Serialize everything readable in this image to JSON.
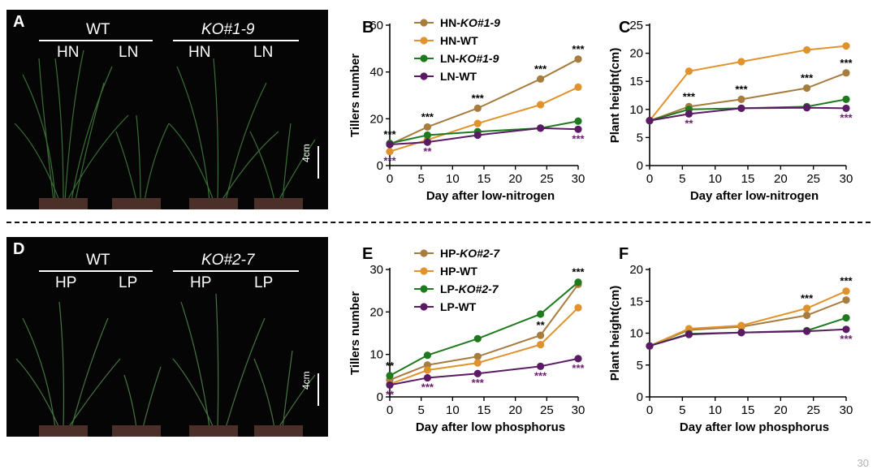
{
  "page_number": "30",
  "colors": {
    "ko": "#a67c3f",
    "wt": "#e0922c",
    "low_ko": "#1f7a1f",
    "low_wt": "#5b1a64",
    "sig_black": "#000000",
    "sig_purple": "#6b1f6f"
  },
  "panels_photo": [
    {
      "label": "A",
      "group_left": "WT",
      "group_right": "KO#1-9",
      "sub": [
        "HN",
        "LN",
        "HN",
        "LN"
      ],
      "scale": "4cm"
    },
    {
      "label": "D",
      "group_left": "WT",
      "group_right": "KO#2-7",
      "sub": [
        "HP",
        "LP",
        "HP",
        "LP"
      ],
      "scale": "4cm"
    }
  ],
  "chart_data": [
    {
      "panel": "B",
      "type": "line",
      "xlabel": "Day after low-nitrogen",
      "ylabel": "Tillers number",
      "x": [
        0,
        6,
        14,
        24,
        30
      ],
      "xticks": [
        "0",
        "5",
        "10",
        "15",
        "20",
        "25",
        "30"
      ],
      "xtick_values": [
        0,
        5,
        10,
        15,
        20,
        25,
        30
      ],
      "ylim": [
        0,
        60
      ],
      "yticks": [
        "0",
        "20",
        "40",
        "60"
      ],
      "ytick_values": [
        0,
        20,
        40,
        60
      ],
      "legend": [
        {
          "prefix": "HN-",
          "italic": "KO#1-9"
        },
        {
          "prefix": "HN-WT",
          "italic": ""
        },
        {
          "prefix": "LN-",
          "italic": "KO#1-9"
        },
        {
          "prefix": "LN-WT",
          "italic": ""
        }
      ],
      "series": [
        {
          "name": "HN-KO#1-9",
          "values": [
            9,
            16.5,
            24.5,
            37,
            45.5
          ]
        },
        {
          "name": "HN-WT",
          "values": [
            6,
            11,
            18,
            26,
            33.5
          ]
        },
        {
          "name": "LN-KO#1-9",
          "values": [
            9.5,
            13,
            14.5,
            16,
            19
          ]
        },
        {
          "name": "LN-WT",
          "values": [
            9,
            10,
            13,
            16,
            15.5
          ]
        }
      ],
      "annotations": [
        {
          "x": 0,
          "y": 9,
          "text": "***",
          "color": "black",
          "pos": "above"
        },
        {
          "x": 0,
          "y": 6,
          "text": "***",
          "color": "purple",
          "pos": "below"
        },
        {
          "x": 6,
          "y": 16.5,
          "text": "***",
          "color": "black",
          "pos": "above"
        },
        {
          "x": 6,
          "y": 10,
          "text": "**",
          "color": "purple",
          "pos": "below"
        },
        {
          "x": 14,
          "y": 24.5,
          "text": "***",
          "color": "black",
          "pos": "above"
        },
        {
          "x": 24,
          "y": 37,
          "text": "***",
          "color": "black",
          "pos": "above"
        },
        {
          "x": 30,
          "y": 45.5,
          "text": "***",
          "color": "black",
          "pos": "above"
        },
        {
          "x": 30,
          "y": 15.5,
          "text": "***",
          "color": "purple",
          "pos": "below"
        }
      ]
    },
    {
      "panel": "C",
      "type": "line",
      "xlabel": "Day after low-nitrogen",
      "ylabel": "Plant height(cm)",
      "x": [
        0,
        6,
        14,
        24,
        30
      ],
      "xticks": [
        "0",
        "5",
        "10",
        "15",
        "20",
        "25",
        "30"
      ],
      "xtick_values": [
        0,
        5,
        10,
        15,
        20,
        25,
        30
      ],
      "ylim": [
        0,
        25
      ],
      "yticks": [
        "0",
        "5",
        "10",
        "15",
        "20",
        "25"
      ],
      "ytick_values": [
        0,
        5,
        10,
        15,
        20,
        25
      ],
      "legend": [],
      "series": [
        {
          "name": "HN-KO#1-9",
          "values": [
            8,
            10.5,
            11.8,
            13.8,
            16.5
          ]
        },
        {
          "name": "HN-WT",
          "values": [
            8,
            16.8,
            18.5,
            20.6,
            21.3
          ]
        },
        {
          "name": "LN-KO#1-9",
          "values": [
            8,
            10,
            10.2,
            10.5,
            11.8
          ]
        },
        {
          "name": "LN-WT",
          "values": [
            8,
            9.2,
            10.2,
            10.3,
            10.2
          ]
        }
      ],
      "annotations": [
        {
          "x": 6,
          "y": 10.5,
          "text": "***",
          "color": "black",
          "pos": "above"
        },
        {
          "x": 6,
          "y": 9.2,
          "text": "**",
          "color": "purple",
          "pos": "below"
        },
        {
          "x": 14,
          "y": 11.8,
          "text": "***",
          "color": "black",
          "pos": "above"
        },
        {
          "x": 24,
          "y": 13.8,
          "text": "***",
          "color": "black",
          "pos": "above"
        },
        {
          "x": 30,
          "y": 16.5,
          "text": "***",
          "color": "black",
          "pos": "above"
        },
        {
          "x": 30,
          "y": 10.2,
          "text": "***",
          "color": "purple",
          "pos": "below"
        }
      ]
    },
    {
      "panel": "E",
      "type": "line",
      "xlabel": "Day after low phosphorus",
      "ylabel": "Tillers number",
      "x": [
        0,
        6,
        14,
        24,
        30
      ],
      "xticks": [
        "0",
        "5",
        "10",
        "15",
        "20",
        "25",
        "30"
      ],
      "xtick_values": [
        0,
        5,
        10,
        15,
        20,
        25,
        30
      ],
      "ylim": [
        0,
        30
      ],
      "yticks": [
        "0",
        "10",
        "20",
        "30"
      ],
      "ytick_values": [
        0,
        10,
        20,
        30
      ],
      "legend": [
        {
          "prefix": "HP-",
          "italic": "KO#2-7"
        },
        {
          "prefix": "HP-WT",
          "italic": ""
        },
        {
          "prefix": "LP-",
          "italic": "KO#2-7"
        },
        {
          "prefix": "LP-WT",
          "italic": ""
        }
      ],
      "series": [
        {
          "name": "HP-KO#2-7",
          "values": [
            4,
            7.5,
            9.5,
            14.5,
            26.5
          ]
        },
        {
          "name": "HP-WT",
          "values": [
            3,
            6.3,
            8,
            12.3,
            21
          ]
        },
        {
          "name": "LP-KO#2-7",
          "values": [
            5,
            9.8,
            13.7,
            19.5,
            27
          ]
        },
        {
          "name": "LP-WT",
          "values": [
            2.8,
            4.5,
            5.5,
            7.2,
            9
          ]
        }
      ],
      "annotations": [
        {
          "x": 0,
          "y": 5,
          "text": "**",
          "color": "black",
          "pos": "above"
        },
        {
          "x": 0,
          "y": 2.8,
          "text": "**",
          "color": "purple",
          "pos": "below"
        },
        {
          "x": 6,
          "y": 4.5,
          "text": "***",
          "color": "purple",
          "pos": "below"
        },
        {
          "x": 14,
          "y": 5.5,
          "text": "***",
          "color": "purple",
          "pos": "below"
        },
        {
          "x": 24,
          "y": 14.5,
          "text": "**",
          "color": "black",
          "pos": "above"
        },
        {
          "x": 24,
          "y": 7.2,
          "text": "***",
          "color": "purple",
          "pos": "below"
        },
        {
          "x": 30,
          "y": 27,
          "text": "***",
          "color": "black",
          "pos": "above"
        },
        {
          "x": 30,
          "y": 9,
          "text": "***",
          "color": "purple",
          "pos": "below"
        }
      ]
    },
    {
      "panel": "F",
      "type": "line",
      "xlabel": "Day after low phosphorus",
      "ylabel": "Plant height(cm)",
      "x": [
        0,
        6,
        14,
        24,
        30
      ],
      "xticks": [
        "0",
        "5",
        "10",
        "15",
        "20",
        "25",
        "30"
      ],
      "xtick_values": [
        0,
        5,
        10,
        15,
        20,
        25,
        30
      ],
      "ylim": [
        0,
        20
      ],
      "yticks": [
        "0",
        "5",
        "10",
        "15",
        "20"
      ],
      "ytick_values": [
        0,
        5,
        10,
        15,
        20
      ],
      "legend": [],
      "series": [
        {
          "name": "HP-KO#2-7",
          "values": [
            8,
            10.5,
            11,
            12.8,
            15.2
          ]
        },
        {
          "name": "HP-WT",
          "values": [
            8,
            10.7,
            11.2,
            13.9,
            16.6
          ]
        },
        {
          "name": "LP-KO#2-7",
          "values": [
            8,
            9.9,
            10.1,
            10.4,
            12.4
          ]
        },
        {
          "name": "LP-WT",
          "values": [
            8,
            9.8,
            10.1,
            10.3,
            10.6
          ]
        }
      ],
      "annotations": [
        {
          "x": 24,
          "y": 13.9,
          "text": "***",
          "color": "black",
          "pos": "above"
        },
        {
          "x": 30,
          "y": 16.6,
          "text": "***",
          "color": "black",
          "pos": "above"
        },
        {
          "x": 30,
          "y": 10.6,
          "text": "***",
          "color": "purple",
          "pos": "below"
        }
      ]
    }
  ]
}
